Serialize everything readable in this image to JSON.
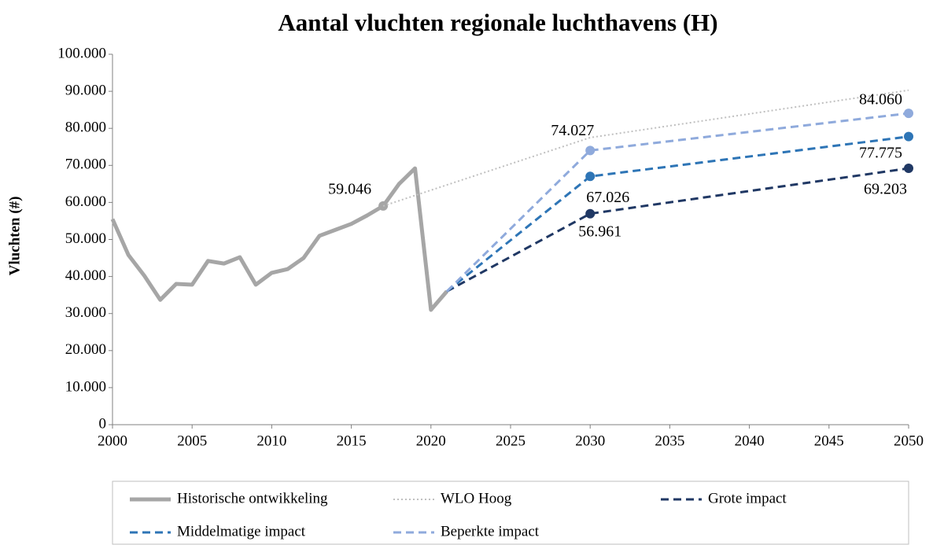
{
  "chart_data": {
    "type": "line",
    "title": "Aantal vluchten regionale luchthavens (H)",
    "y_label": "Vluchten (#)",
    "xlim": [
      2000,
      2050
    ],
    "xticks": [
      2000,
      2005,
      2010,
      2015,
      2020,
      2025,
      2030,
      2035,
      2040,
      2045,
      2050
    ],
    "ylim": [
      0,
      100000
    ],
    "yticks": [
      0,
      {
        "value": 10000,
        "label": "10.000"
      },
      {
        "value": 20000,
        "label": "20.000"
      },
      {
        "value": 30000,
        "label": "30.000"
      },
      {
        "value": 40000,
        "label": "40.000"
      },
      {
        "value": 50000,
        "label": "50.000"
      },
      {
        "value": 60000,
        "label": "60.000"
      },
      {
        "value": 70000,
        "label": "70.000"
      },
      {
        "value": 80000,
        "label": "80.000"
      },
      {
        "value": 90000,
        "label": "90.000"
      },
      {
        "value": 100000,
        "label": "100.000"
      }
    ],
    "grid": false,
    "series": [
      {
        "name": "Historische ontwikkeling",
        "color": "#a6a6a6",
        "style": "solid",
        "x": [
          2000,
          2001,
          2002,
          2003,
          2004,
          2005,
          2006,
          2007,
          2008,
          2009,
          2010,
          2011,
          2012,
          2013,
          2014,
          2015,
          2016,
          2017,
          2018,
          2019,
          2020,
          2021
        ],
        "values": [
          55500,
          45800,
          40200,
          33700,
          38000,
          37800,
          44200,
          43500,
          45200,
          37800,
          41000,
          42000,
          45000,
          51000,
          52600,
          54200,
          56500,
          59046,
          65000,
          69200,
          31000,
          36000
        ],
        "value_labels": [
          null,
          null,
          null,
          null,
          null,
          null,
          null,
          null,
          null,
          null,
          null,
          null,
          null,
          null,
          null,
          null,
          null,
          "59.046",
          null,
          null,
          null,
          null
        ]
      },
      {
        "name": "WLO Hoog",
        "color": "#c0c0c0",
        "style": "dotted",
        "x": [
          2017,
          2030,
          2050
        ],
        "values": [
          59046,
          77500,
          90300
        ]
      },
      {
        "name": "Grote impact",
        "color": "#203864",
        "style": "dashed",
        "x": [
          2021,
          2030,
          2050
        ],
        "values": [
          36000,
          56961,
          69203
        ],
        "value_labels": [
          null,
          "56.961",
          "69.203"
        ]
      },
      {
        "name": "Middelmatige impact",
        "color": "#2e75b6",
        "style": "dashed",
        "x": [
          2021,
          2030,
          2050
        ],
        "values": [
          36000,
          67026,
          77775
        ],
        "value_labels": [
          null,
          "67.026",
          "77.775"
        ]
      },
      {
        "name": "Beperkte impact",
        "color": "#8faadc",
        "style": "dashed",
        "x": [
          2021,
          2030,
          2050
        ],
        "values": [
          36000,
          74027,
          84060
        ],
        "value_labels": [
          null,
          "74.027",
          "84.060"
        ]
      }
    ]
  }
}
